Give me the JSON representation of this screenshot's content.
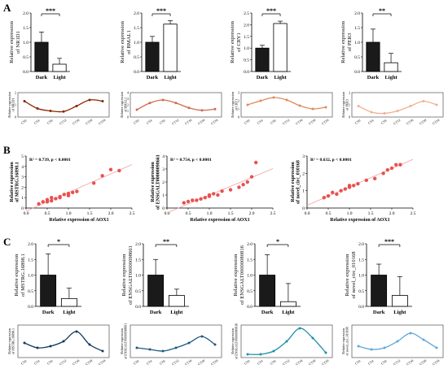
{
  "panel_labels": [
    "A",
    "B",
    "C"
  ],
  "chart_data": [
    {
      "type": "bar",
      "panel": "A",
      "categories": [
        "Dark",
        "Light"
      ],
      "values": [
        1.0,
        0.25
      ],
      "errors": [
        0.35,
        0.2
      ],
      "ylabel": "Relative expression of NR1D1",
      "ylim": [
        0,
        2.0
      ],
      "yticks": [
        0,
        0.5,
        1.0,
        1.5,
        2.0
      ],
      "tick_labels": [
        "0.0",
        "0.5",
        "1.0",
        "1.5",
        "2.0"
      ],
      "significance": "***",
      "colors": [
        "#1a1a1a",
        "#ffffff"
      ]
    },
    {
      "type": "bar",
      "panel": "A",
      "categories": [
        "Dark",
        "Light"
      ],
      "values": [
        1.0,
        1.62
      ],
      "errors": [
        0.2,
        0.12
      ],
      "ylabel": "Relative expression of BMAL1",
      "ylim": [
        0,
        2.0
      ],
      "yticks": [
        0,
        0.5,
        1.0,
        1.5,
        2.0
      ],
      "tick_labels": [
        "0.0",
        "0.5",
        "1.0",
        "1.5",
        "2.0"
      ],
      "significance": "***",
      "colors": [
        "#1a1a1a",
        "#ffffff"
      ]
    },
    {
      "type": "bar",
      "panel": "A",
      "categories": [
        "Dark",
        "Light"
      ],
      "values": [
        1.0,
        2.05
      ],
      "errors": [
        0.12,
        0.1
      ],
      "ylabel": "Relative expression of CRY1",
      "ylim": [
        0,
        2.5
      ],
      "yticks": [
        0,
        0.5,
        1.0,
        1.5,
        2.0,
        2.5
      ],
      "tick_labels": [
        "0.0",
        "0.5",
        "1.0",
        "1.5",
        "2.0",
        "2.5"
      ],
      "significance": "***",
      "colors": [
        "#1a1a1a",
        "#ffffff"
      ]
    },
    {
      "type": "bar",
      "panel": "A",
      "categories": [
        "Dark",
        "Light"
      ],
      "values": [
        1.0,
        0.3
      ],
      "errors": [
        0.45,
        0.32
      ],
      "ylabel": "Relative expression of PER3",
      "ylim": [
        0,
        2.0
      ],
      "yticks": [
        0,
        0.5,
        1.0,
        1.5,
        2.0
      ],
      "tick_labels": [
        "0.0",
        "0.5",
        "1.0",
        "1.5",
        "2.0"
      ],
      "significance": "**",
      "colors": [
        "#1a1a1a",
        "#ffffff"
      ]
    },
    {
      "type": "line",
      "panel": "A",
      "x": [
        "CT0",
        "CT4",
        "CT8",
        "CT12",
        "CT16",
        "CT20",
        "CT24"
      ],
      "values": [
        1.3,
        0.7,
        0.5,
        0.45,
        0.9,
        1.4,
        1.3
      ],
      "ylabel": "Relative expression of NR1D1",
      "ylim": [
        0,
        2
      ],
      "yticks": [
        0,
        1,
        2
      ],
      "color": "#8b2500"
    },
    {
      "type": "line",
      "panel": "A",
      "x": [
        "CT0",
        "CT4",
        "CT8",
        "CT12",
        "CT16",
        "CT20",
        "CT24"
      ],
      "values": [
        1.2,
        2.3,
        2.8,
        2.3,
        1.5,
        1.1,
        1.3
      ],
      "ylabel": "Relative expression of BMAL1",
      "ylim": [
        0,
        4
      ],
      "yticks": [
        0,
        1,
        2,
        3,
        4
      ],
      "color": "#d26a4a"
    },
    {
      "type": "line",
      "panel": "A",
      "x": [
        "CT0",
        "CT4",
        "CT8",
        "CT12",
        "CT16",
        "CT20",
        "CT24"
      ],
      "values": [
        1.5,
        2.0,
        2.4,
        2.1,
        1.4,
        1.0,
        1.2
      ],
      "ylabel": "Relative expression of CRY1",
      "ylim": [
        0,
        3
      ],
      "yticks": [
        0,
        1,
        2,
        3
      ],
      "color": "#e08a5a"
    },
    {
      "type": "line",
      "panel": "A",
      "x": [
        "CT0",
        "CT4",
        "CT8",
        "CT12",
        "CT16",
        "CT20",
        "CT24"
      ],
      "values": [
        0.9,
        0.4,
        0.3,
        0.5,
        0.9,
        1.3,
        1.0
      ],
      "ylabel": "Relative expression of PER3",
      "ylim": [
        0,
        2
      ],
      "yticks": [
        0,
        1,
        2
      ],
      "color": "#f0b090"
    },
    {
      "type": "scatter",
      "panel": "B",
      "annotation": "R² = 0.739, p < 0.0001",
      "xlabel": "Relative expression of AOX1",
      "ylabel": "Relative expression of MSTRG.16898.1",
      "xlim": [
        0,
        2.5
      ],
      "ylim": [
        0,
        5
      ],
      "xticks": [
        0,
        0.5,
        1.0,
        1.5,
        2.0,
        2.5
      ],
      "x_tick_labels": [
        "0.0",
        "0.5",
        "1.0",
        "1.5",
        "2.0",
        "2.5"
      ],
      "yticks": [
        0,
        1,
        2,
        3,
        4,
        5
      ],
      "x": [
        0.3,
        0.4,
        0.5,
        0.5,
        0.6,
        0.6,
        0.7,
        0.8,
        0.8,
        0.9,
        1.0,
        1.0,
        1.1,
        1.2,
        1.6,
        1.8,
        2.0,
        2.2
      ],
      "y": [
        0.4,
        0.6,
        0.6,
        0.8,
        0.7,
        1.0,
        0.9,
        1.0,
        1.1,
        1.3,
        1.2,
        1.4,
        1.5,
        1.6,
        2.4,
        3.1,
        3.7,
        3.6
      ],
      "color": "#e8514f"
    },
    {
      "type": "scatter",
      "panel": "B",
      "annotation": "R² = 0.754, p < 0.0001",
      "xlabel": "Relative expression of AOX1",
      "ylabel": "Relative expression of ENSGALT00000098661",
      "xlim": [
        0,
        2.5
      ],
      "ylim": [
        0,
        4
      ],
      "xticks": [
        0,
        0.5,
        1.0,
        1.5,
        2.0,
        2.5
      ],
      "x_tick_labels": [
        "0.0",
        "0.5",
        "1.0",
        "1.5",
        "2.0",
        "2.5"
      ],
      "yticks": [
        0,
        1,
        2,
        3,
        4
      ],
      "x": [
        0.4,
        0.5,
        0.6,
        0.7,
        0.8,
        0.9,
        1.0,
        1.0,
        1.1,
        1.2,
        1.3,
        1.5,
        1.7,
        1.8,
        1.9,
        2.0,
        2.1
      ],
      "y": [
        0.4,
        0.5,
        0.6,
        0.6,
        0.7,
        0.8,
        0.9,
        1.0,
        1.1,
        1.0,
        1.3,
        1.4,
        1.6,
        1.8,
        2.0,
        2.4,
        3.5
      ],
      "color": "#e8514f"
    },
    {
      "type": "scatter",
      "panel": "B",
      "annotation": "R² = 0.632, p < 0.0001",
      "xlabel": "Relative expression of AOX1",
      "ylabel": "Relative expression of novel_circ_010168",
      "xlim": [
        0,
        2.5
      ],
      "ylim": [
        0,
        3
      ],
      "xticks": [
        0,
        0.5,
        1.0,
        1.5,
        2.0,
        2.5
      ],
      "x_tick_labels": [
        "0.0",
        "0.5",
        "1.0",
        "1.5",
        "2.0",
        "2.5"
      ],
      "yticks": [
        0,
        1,
        2,
        3
      ],
      "x": [
        0.4,
        0.5,
        0.6,
        0.7,
        0.8,
        0.9,
        1.0,
        1.0,
        1.1,
        1.2,
        1.4,
        1.6,
        1.8,
        1.9,
        2.0,
        2.1,
        2.2
      ],
      "y": [
        0.6,
        0.7,
        0.9,
        0.8,
        1.0,
        1.1,
        1.2,
        1.3,
        1.3,
        1.4,
        1.6,
        1.7,
        2.0,
        2.2,
        2.3,
        2.5,
        2.5
      ],
      "color": "#e8514f"
    },
    {
      "type": "bar",
      "panel": "C",
      "categories": [
        "Dark",
        "Light"
      ],
      "values": [
        1.0,
        0.25
      ],
      "errors": [
        0.68,
        0.33
      ],
      "ylabel": "Relative expression of MSTRG.16898.1",
      "ylim": [
        0,
        2.0
      ],
      "yticks": [
        0,
        0.5,
        1.0,
        1.5,
        2.0
      ],
      "tick_labels": [
        "0.0",
        "0.5",
        "1.0",
        "1.5",
        "2.0"
      ],
      "significance": "*",
      "colors": [
        "#1a1a1a",
        "#ffffff"
      ]
    },
    {
      "type": "bar",
      "panel": "C",
      "categories": [
        "Dark",
        "Light"
      ],
      "values": [
        1.0,
        0.35
      ],
      "errors": [
        0.5,
        0.2
      ],
      "ylabel": "Relative expression of ENSGALT00000098661",
      "ylim": [
        0,
        2.0
      ],
      "yticks": [
        0,
        0.5,
        1.0,
        1.5,
        2.0
      ],
      "tick_labels": [
        "0.0",
        "0.5",
        "1.0",
        "1.5",
        "2.0"
      ],
      "significance": "**",
      "colors": [
        "#1a1a1a",
        "#ffffff"
      ]
    },
    {
      "type": "bar",
      "panel": "C",
      "categories": [
        "Dark",
        "Light"
      ],
      "values": [
        1.0,
        0.15
      ],
      "errors": [
        0.65,
        0.58
      ],
      "ylabel": "Relative expression of ENSGALT00000080816",
      "ylim": [
        0,
        2.0
      ],
      "yticks": [
        0,
        0.5,
        1.0,
        1.5,
        2.0
      ],
      "tick_labels": [
        "0.0",
        "0.5",
        "1.0",
        "1.5",
        "2.0"
      ],
      "significance": "*",
      "colors": [
        "#1a1a1a",
        "#ffffff"
      ]
    },
    {
      "type": "bar",
      "panel": "C",
      "categories": [
        "Dark",
        "Light"
      ],
      "values": [
        1.0,
        0.35
      ],
      "errors": [
        0.35,
        0.6
      ],
      "ylabel": "Relative expression of novel_circ_010168",
      "ylim": [
        0,
        2.0
      ],
      "yticks": [
        0,
        0.5,
        1.0,
        1.5,
        2.0
      ],
      "tick_labels": [
        "0.0",
        "0.5",
        "1.0",
        "1.5",
        "2.0"
      ],
      "significance": "***",
      "colors": [
        "#1a1a1a",
        "#ffffff"
      ]
    },
    {
      "type": "line",
      "panel": "C",
      "x": [
        "CT0",
        "CT4",
        "CT8",
        "CT12",
        "CT16",
        "CT20",
        "CT24"
      ],
      "values": [
        0.9,
        0.6,
        0.7,
        1.0,
        1.6,
        0.8,
        0.4
      ],
      "ylabel": "Relative expression of MSTRG.16898.1",
      "ylim": [
        0,
        2
      ],
      "color": "#123a5c"
    },
    {
      "type": "line",
      "panel": "C",
      "x": [
        "CT0",
        "CT4",
        "CT8",
        "CT12",
        "CT16",
        "CT20",
        "CT24"
      ],
      "values": [
        0.6,
        0.5,
        0.4,
        0.6,
        0.9,
        1.3,
        0.8
      ],
      "ylabel": "Relative expression of ENSGALT00000098661",
      "ylim": [
        0,
        2
      ],
      "color": "#1e5a82"
    },
    {
      "type": "line",
      "panel": "C",
      "x": [
        "CT0",
        "CT4",
        "CT8",
        "CT12",
        "CT16",
        "CT20",
        "CT24"
      ],
      "values": [
        0.2,
        0.2,
        0.4,
        1.0,
        1.8,
        1.2,
        0.3
      ],
      "ylabel": "Relative expression of ENSGALT00000080816",
      "ylim": [
        0,
        2
      ],
      "color": "#1f8fa8"
    },
    {
      "type": "line",
      "panel": "C",
      "x": [
        "CT0",
        "CT4",
        "CT8",
        "CT12",
        "CT16",
        "CT20",
        "CT24"
      ],
      "values": [
        0.7,
        0.5,
        0.6,
        1.0,
        1.5,
        1.1,
        0.6
      ],
      "ylabel": "Relative expression of novel_circ_010168",
      "ylim": [
        0,
        2
      ],
      "color": "#5fa8d8"
    }
  ]
}
